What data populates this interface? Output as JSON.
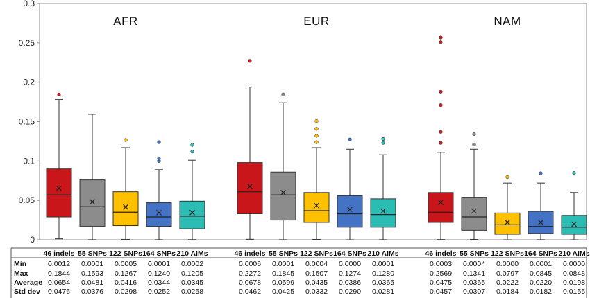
{
  "chart_data": {
    "type": "box",
    "ylim": [
      0,
      0.3
    ],
    "yticks": [
      "0",
      "0.05",
      "0.1",
      "0.15",
      "0.2",
      "0.25",
      "0.3"
    ],
    "grid": false,
    "categories": [
      "46 indels",
      "55 SNPs",
      "122 SNPs",
      "164 SNPs",
      "210 AIMs"
    ],
    "colors": [
      "#c8161b",
      "#8c8c8c",
      "#ffc000",
      "#4472c4",
      "#2bbcb3"
    ],
    "groups": [
      {
        "name": "AFR",
        "boxes": [
          {
            "min": 0.0012,
            "q1": 0.029,
            "median": 0.057,
            "q3": 0.09,
            "max": 0.178,
            "mean": 0.0654,
            "outliers": [
              0.1844
            ]
          },
          {
            "min": 0.0001,
            "q1": 0.017,
            "median": 0.042,
            "q3": 0.076,
            "max": 0.1593,
            "mean": 0.0481,
            "outliers": []
          },
          {
            "min": 0.0005,
            "q1": 0.018,
            "median": 0.035,
            "q3": 0.061,
            "max": 0.117,
            "mean": 0.0416,
            "outliers": [
              0.1267
            ]
          },
          {
            "min": 0.0001,
            "q1": 0.017,
            "median": 0.029,
            "q3": 0.047,
            "max": 0.089,
            "mean": 0.0344,
            "outliers": [
              0.1,
              0.103,
              0.124
            ]
          },
          {
            "min": 0.0002,
            "q1": 0.014,
            "median": 0.03,
            "q3": 0.049,
            "max": 0.101,
            "mean": 0.0345,
            "outliers": [
              0.112,
              0.1205
            ]
          }
        ],
        "stats": {
          "Min": [
            "0.0012",
            "0.0001",
            "0.0005",
            "0.0001",
            "0.0002"
          ],
          "Max": [
            "0.1844",
            "0.1593",
            "0.1267",
            "0.1240",
            "0.1205"
          ],
          "Average": [
            "0.0654",
            "0.0481",
            "0.0416",
            "0.0344",
            "0.0345"
          ],
          "Std dev": [
            "0.0476",
            "0.0376",
            "0.0298",
            "0.0252",
            "0.0258"
          ]
        }
      },
      {
        "name": "EUR",
        "boxes": [
          {
            "min": 0.0006,
            "q1": 0.033,
            "median": 0.061,
            "q3": 0.098,
            "max": 0.194,
            "mean": 0.0678,
            "outliers": [
              0.2272
            ]
          },
          {
            "min": 0.0001,
            "q1": 0.025,
            "median": 0.057,
            "q3": 0.086,
            "max": 0.174,
            "mean": 0.0599,
            "outliers": [
              0.1845
            ]
          },
          {
            "min": 0.0004,
            "q1": 0.022,
            "median": 0.037,
            "q3": 0.06,
            "max": 0.117,
            "mean": 0.0435,
            "outliers": [
              0.124,
              0.132,
              0.141,
              0.1507
            ]
          },
          {
            "min": 0.0,
            "q1": 0.016,
            "median": 0.033,
            "q3": 0.056,
            "max": 0.115,
            "mean": 0.0386,
            "outliers": [
              0.1274
            ]
          },
          {
            "min": 0.0001,
            "q1": 0.016,
            "median": 0.032,
            "q3": 0.052,
            "max": 0.108,
            "mean": 0.0365,
            "outliers": [
              0.123,
              0.128
            ]
          }
        ],
        "stats": {
          "Min": [
            "0.0006",
            "0.0001",
            "0.0004",
            "0.0000",
            "0.0001"
          ],
          "Max": [
            "0.2272",
            "0.1845",
            "0.1507",
            "0.1274",
            "0.1280"
          ],
          "Average": [
            "0.0678",
            "0.0599",
            "0.0435",
            "0.0386",
            "0.0365"
          ],
          "Std dev": [
            "0.0462",
            "0.0425",
            "0.0332",
            "0.0290",
            "0.0281"
          ]
        }
      },
      {
        "name": "NAM",
        "boxes": [
          {
            "min": 0.0003,
            "q1": 0.022,
            "median": 0.035,
            "q3": 0.06,
            "max": 0.111,
            "mean": 0.0475,
            "outliers": [
              0.123,
              0.137,
              0.171,
              0.188,
              0.251,
              0.2569
            ]
          },
          {
            "min": 0.0004,
            "q1": 0.012,
            "median": 0.029,
            "q3": 0.054,
            "max": 0.115,
            "mean": 0.0365,
            "outliers": [
              0.121,
              0.1341
            ]
          },
          {
            "min": 0.0,
            "q1": 0.007,
            "median": 0.019,
            "q3": 0.034,
            "max": 0.072,
            "mean": 0.0222,
            "outliers": [
              0.0797
            ]
          },
          {
            "min": 0.0001,
            "q1": 0.008,
            "median": 0.017,
            "q3": 0.036,
            "max": 0.072,
            "mean": 0.022,
            "outliers": [
              0.0845
            ]
          },
          {
            "min": 0.0,
            "q1": 0.007,
            "median": 0.016,
            "q3": 0.031,
            "max": 0.06,
            "mean": 0.0198,
            "outliers": [
              0.0848
            ]
          }
        ],
        "stats": {
          "Min": [
            "0.0003",
            "0.0004",
            "0.0000",
            "0.0001",
            "0.0000"
          ],
          "Max": [
            "0.2569",
            "0.1341",
            "0.0797",
            "0.0845",
            "0.0848"
          ],
          "Average": [
            "0.0475",
            "0.0365",
            "0.0222",
            "0.0220",
            "0.0198"
          ],
          "Std dev": [
            "0.0457",
            "0.0307",
            "0.0184",
            "0.0182",
            "0.0155"
          ]
        }
      }
    ],
    "stat_rows": [
      "Min",
      "Max",
      "Average",
      "Std dev"
    ]
  }
}
